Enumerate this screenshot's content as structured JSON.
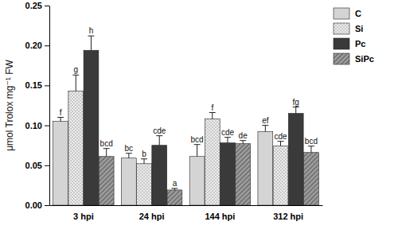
{
  "chart_data": {
    "type": "bar",
    "y_label": "μmol Trolox mg⁻¹ FW",
    "categories": [
      "3 hpi",
      "24 hpi",
      "144 hpi",
      "312 hpi"
    ],
    "series": [
      {
        "name": "C",
        "color": "#d4d4d4",
        "values": [
          0.105,
          0.059,
          0.061,
          0.092
        ],
        "errors": [
          0.005,
          0.006,
          0.015,
          0.008
        ],
        "letters": [
          "f",
          "bc",
          "bcd",
          "ef"
        ]
      },
      {
        "name": "Si",
        "color": "#ececec",
        "values": [
          0.143,
          0.052,
          0.108,
          0.074
        ],
        "errors": [
          0.02,
          0.006,
          0.008,
          0.006
        ],
        "letters": [
          "g",
          "b",
          "f",
          "cde"
        ]
      },
      {
        "name": "Pc",
        "color": "#3a3a3a",
        "values": [
          0.194,
          0.075,
          0.078,
          0.115
        ],
        "errors": [
          0.018,
          0.012,
          0.007,
          0.008
        ],
        "letters": [
          "h",
          "cde",
          "cde",
          "fg"
        ]
      },
      {
        "name": "SiPc",
        "color": "#9a9a9a",
        "values": [
          0.061,
          0.019,
          0.077,
          0.066
        ],
        "errors": [
          0.01,
          0.002,
          0.004,
          0.008
        ],
        "letters": [
          "bcd",
          "a",
          "de",
          "bcd"
        ]
      }
    ],
    "ylim": [
      0,
      0.25
    ],
    "yticks": [
      {
        "value": 0,
        "label": "0.00"
      },
      {
        "value": 0.05,
        "label": "0.05"
      },
      {
        "value": 0.1,
        "label": "0.10"
      },
      {
        "value": 0.15,
        "label": "0.15"
      },
      {
        "value": 0.2,
        "label": "0.20"
      },
      {
        "value": 0.25,
        "label": "0.25"
      }
    ],
    "legend": "top-right",
    "grid": false
  }
}
